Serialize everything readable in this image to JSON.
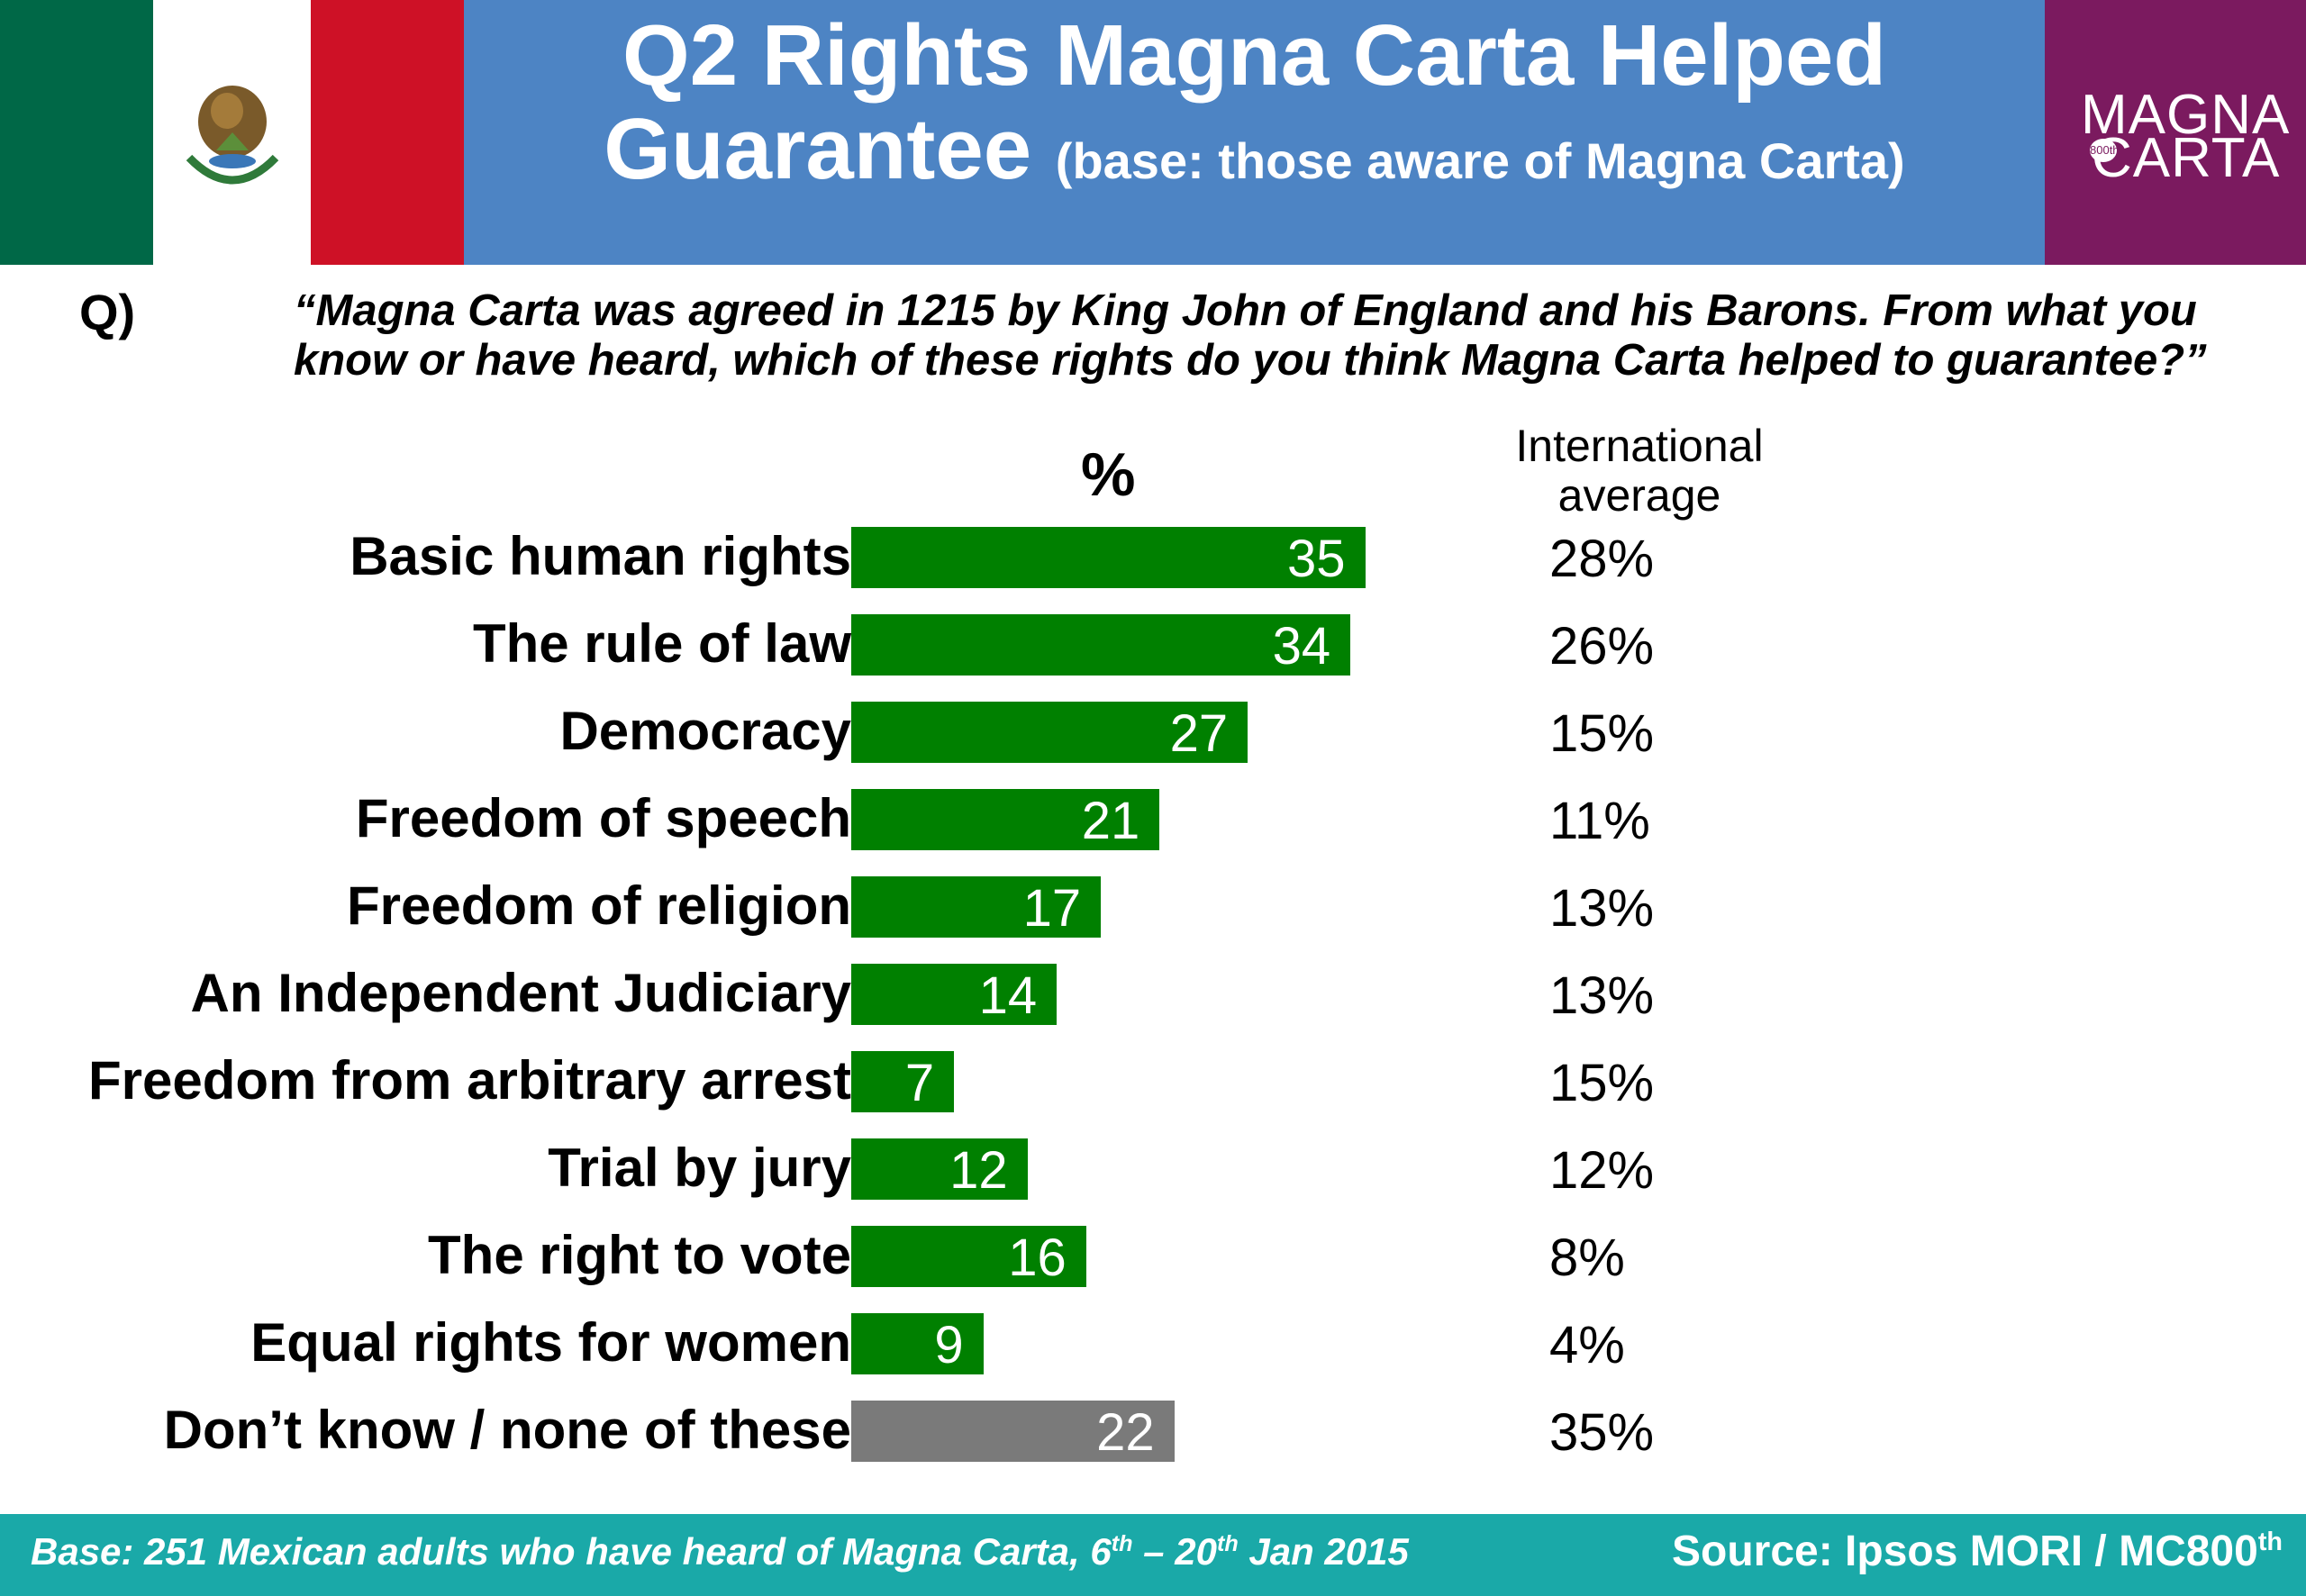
{
  "header": {
    "title_line1": "Q2 Rights Magna Carta Helped",
    "title_line2": "Guarantee",
    "title_base": "(base: those aware of Magna Carta)",
    "logo_line1": "MAGNA",
    "logo_line2": "CARTA",
    "logo_badge": "800th",
    "flag_colors": [
      "#006847",
      "#ffffff",
      "#ce1126"
    ],
    "background_color": "#4d84c4",
    "logo_color": "#7b1a5f"
  },
  "question": {
    "label": "Q)",
    "text": "“Magna Carta was agreed in 1215 by King John of England and his Barons. From what you know or have heard, which of these rights do you think Magna Carta helped to guarantee?”"
  },
  "columns": {
    "percent_header": "%",
    "intl_header_line1": "International",
    "intl_header_line2": "average"
  },
  "chart_data": {
    "type": "bar",
    "orientation": "horizontal",
    "categories": [
      "Basic human rights",
      "The rule of law",
      "Democracy",
      "Freedom of speech",
      "Freedom of religion",
      "An Independent Judiciary",
      "Freedom from arbitrary arrest",
      "Trial by jury",
      "The right to vote",
      "Equal rights for women",
      "Don’t know / none of these"
    ],
    "values": [
      35,
      34,
      27,
      21,
      17,
      14,
      7,
      12,
      16,
      9,
      22
    ],
    "international_average": [
      "28%",
      "26%",
      "15%",
      "11%",
      "13%",
      "13%",
      "15%",
      "12%",
      "8%",
      "4%",
      "35%"
    ],
    "bar_colors": [
      "#008000",
      "#008000",
      "#008000",
      "#008000",
      "#008000",
      "#008000",
      "#008000",
      "#008000",
      "#008000",
      "#008000",
      "#7a7a7a"
    ],
    "grid": false,
    "legend": "none"
  },
  "footer": {
    "base_text": "Base: 251 Mexican adults who have heard of Magna Carta, 6",
    "base_sup1": "th",
    "base_mid": " – 20",
    "base_sup2": "th",
    "base_end": " Jan 2015",
    "source_text": "Source: Ipsos MORI / MC800",
    "source_sup": "th",
    "background_color": "#1aa9a8"
  }
}
